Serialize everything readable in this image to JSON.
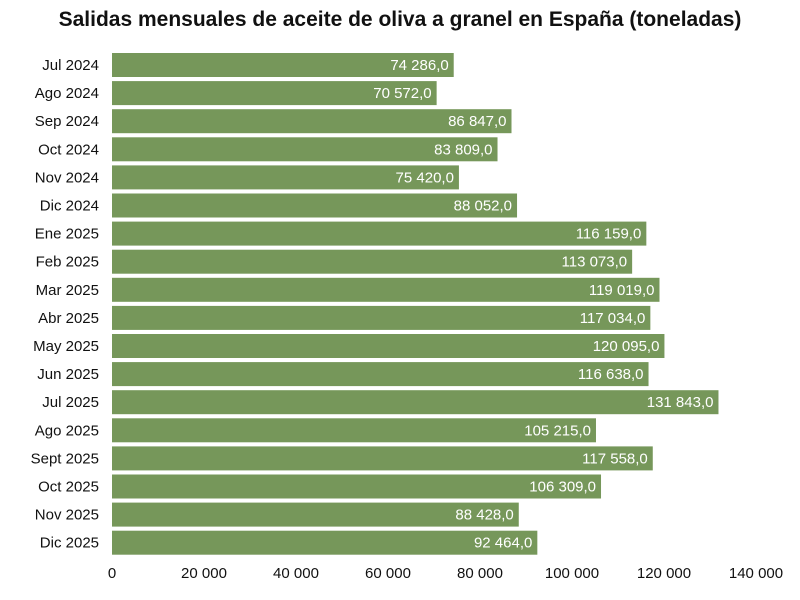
{
  "chart_data": {
    "type": "bar",
    "orientation": "horizontal",
    "title": "Salidas mensuales de aceite de oliva a granel en España (toneladas)",
    "xlabel": "",
    "ylabel": "",
    "categories": [
      "Jul 2024",
      "Ago 2024",
      "Sep 2024",
      "Oct 2024",
      "Nov 2024",
      "Dic 2024",
      "Ene 2025",
      "Feb 2025",
      "Mar 2025",
      "Abr 2025",
      "May 2025",
      "Jun 2025",
      "Jul 2025",
      "Ago 2025",
      "Sept 2025",
      "Oct 2025",
      "Nov 2025",
      "Dic 2025"
    ],
    "values": [
      74286.0,
      70572.0,
      86847.0,
      83809.0,
      75420.0,
      88052.0,
      116159.0,
      113073.0,
      119019.0,
      117034.0,
      120095.0,
      116638.0,
      131843.0,
      105215.0,
      117558.0,
      106309.0,
      88428.0,
      92464.0
    ],
    "value_labels": [
      "74 286,0",
      "70 572,0",
      "86 847,0",
      "83 809,0",
      "75 420,0",
      "88 052,0",
      "116 159,0",
      "113 073,0",
      "119 019,0",
      "117 034,0",
      "120 095,0",
      "116 638,0",
      "131 843,0",
      "105 215,0",
      "117 558,0",
      "106 309,0",
      "88 428,0",
      "92 464,0"
    ],
    "xlim": [
      0,
      140000
    ],
    "x_ticks": [
      0,
      20000,
      40000,
      60000,
      80000,
      100000,
      120000,
      140000
    ],
    "x_tick_labels": [
      "0",
      "20 000",
      "40 000",
      "60 000",
      "80 000",
      "100 000",
      "120 000",
      "140 000"
    ],
    "bar_color": "#76975a",
    "grid": false,
    "legend": "none"
  }
}
